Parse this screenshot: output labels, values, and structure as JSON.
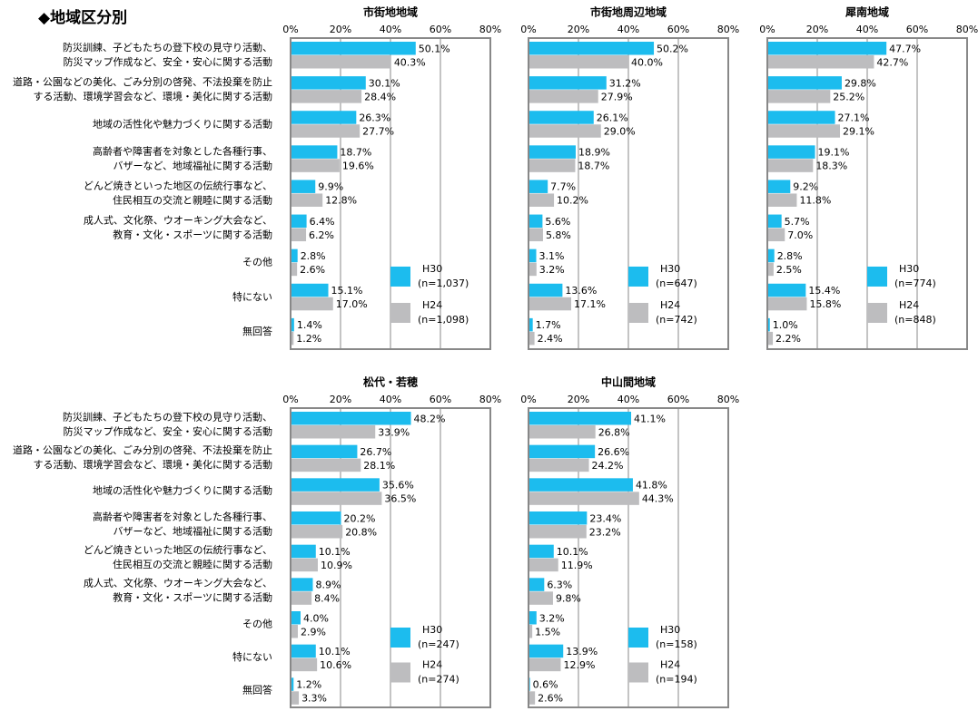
{
  "title": "◆地域区分別",
  "categories": [
    [
      "防災訓練、子どもたちの登下校の見守り活動、",
      "防災マップ作成など、安全・安心に関する活動"
    ],
    [
      "道路・公園などの美化、ごみ分別の啓発、不法投棄を防止",
      "する活動、環境学習会など、環境・美化に関する活動"
    ],
    [
      "地域の活性化や魅力づくりに関する活動"
    ],
    [
      "高齢者や障害者を対象とした各種行事、",
      "バザーなど、地域福祉に関する活動"
    ],
    [
      "どんど焼きといった地区の伝統行事など、",
      "住民相互の交流と親睦に関する活動"
    ],
    [
      "成人式、文化祭、ウオーキング大会など、",
      "教育・文化・スポーツに関する活動"
    ],
    [
      "その他"
    ],
    [
      "特にない"
    ],
    [
      "無回答"
    ]
  ],
  "chart_data": [
    {
      "type": "hbar",
      "title": "市街地地域",
      "xlim": [
        0,
        80
      ],
      "xticks": [
        {
          "value": 0,
          "label": "0%"
        },
        {
          "value": 20,
          "label": "20%"
        },
        {
          "value": 40,
          "label": "40%"
        },
        {
          "value": 60,
          "label": "60%"
        },
        {
          "value": 80,
          "label": "80%"
        }
      ],
      "grid": true,
      "series": [
        {
          "name": "H30",
          "n_label": "(n=1,037)",
          "color": "#1cbcee",
          "values": [
            50.1,
            30.1,
            26.3,
            18.7,
            9.9,
            6.4,
            2.8,
            15.1,
            1.4
          ],
          "value_labels": [
            "50.1%",
            "30.1%",
            "26.3%",
            "18.7%",
            "9.9%",
            "6.4%",
            "2.8%",
            "15.1%",
            "1.4%"
          ]
        },
        {
          "name": "H24",
          "n_label": "(n=1,098)",
          "color": "#bdbdbf",
          "values": [
            40.3,
            28.4,
            27.7,
            19.6,
            12.8,
            6.2,
            2.6,
            17.0,
            1.2
          ],
          "value_labels": [
            "40.3%",
            "28.4%",
            "27.7%",
            "19.6%",
            "12.8%",
            "6.2%",
            "2.6%",
            "17.0%",
            "1.2%"
          ]
        }
      ]
    },
    {
      "type": "hbar",
      "title": "市街地周辺地域",
      "xlim": [
        0,
        80
      ],
      "xticks": [
        {
          "value": 0,
          "label": "0%"
        },
        {
          "value": 20,
          "label": "20%"
        },
        {
          "value": 40,
          "label": "40%"
        },
        {
          "value": 60,
          "label": "60%"
        },
        {
          "value": 80,
          "label": "80%"
        }
      ],
      "grid": true,
      "series": [
        {
          "name": "H30",
          "n_label": "(n=647)",
          "color": "#1cbcee",
          "values": [
            50.2,
            31.2,
            26.1,
            18.9,
            7.7,
            5.6,
            3.1,
            13.6,
            1.7
          ],
          "value_labels": [
            "50.2%",
            "31.2%",
            "26.1%",
            "18.9%",
            "7.7%",
            "5.6%",
            "3.1%",
            "13.6%",
            "1.7%"
          ]
        },
        {
          "name": "H24",
          "n_label": "(n=742)",
          "color": "#bdbdbf",
          "values": [
            40.0,
            27.9,
            29.0,
            18.7,
            10.2,
            5.8,
            3.2,
            17.1,
            2.4
          ],
          "value_labels": [
            "40.0%",
            "27.9%",
            "29.0%",
            "18.7%",
            "10.2%",
            "5.8%",
            "3.2%",
            "17.1%",
            "2.4%"
          ]
        }
      ]
    },
    {
      "type": "hbar",
      "title": "犀南地域",
      "xlim": [
        0,
        80
      ],
      "xticks": [
        {
          "value": 0,
          "label": "0%"
        },
        {
          "value": 20,
          "label": "20%"
        },
        {
          "value": 40,
          "label": "40%"
        },
        {
          "value": 60,
          "label": "60%"
        },
        {
          "value": 80,
          "label": "80%"
        }
      ],
      "grid": true,
      "series": [
        {
          "name": "H30",
          "n_label": "(n=774)",
          "color": "#1cbcee",
          "values": [
            47.7,
            29.8,
            27.1,
            19.1,
            9.2,
            5.7,
            2.8,
            15.4,
            1.0
          ],
          "value_labels": [
            "47.7%",
            "29.8%",
            "27.1%",
            "19.1%",
            "9.2%",
            "5.7%",
            "2.8%",
            "15.4%",
            "1.0%"
          ]
        },
        {
          "name": "H24",
          "n_label": "(n=848)",
          "color": "#bdbdbf",
          "values": [
            42.7,
            25.2,
            29.1,
            18.3,
            11.8,
            7.0,
            2.5,
            15.8,
            2.2
          ],
          "value_labels": [
            "42.7%",
            "25.2%",
            "29.1%",
            "18.3%",
            "11.8%",
            "7.0%",
            "2.5%",
            "15.8%",
            "2.2%"
          ]
        }
      ]
    },
    {
      "type": "hbar",
      "title": "松代・若穂",
      "xlim": [
        0,
        80
      ],
      "xticks": [
        {
          "value": 0,
          "label": "0%"
        },
        {
          "value": 20,
          "label": "20%"
        },
        {
          "value": 40,
          "label": "40%"
        },
        {
          "value": 60,
          "label": "60%"
        },
        {
          "value": 80,
          "label": "80%"
        }
      ],
      "grid": true,
      "series": [
        {
          "name": "H30",
          "n_label": "(n=247)",
          "color": "#1cbcee",
          "values": [
            48.2,
            26.7,
            35.6,
            20.2,
            10.1,
            8.9,
            4.0,
            10.1,
            1.2
          ],
          "value_labels": [
            "48.2%",
            "26.7%",
            "35.6%",
            "20.2%",
            "10.1%",
            "8.9%",
            "4.0%",
            "10.1%",
            "1.2%"
          ]
        },
        {
          "name": "H24",
          "n_label": "(n=274)",
          "color": "#bdbdbf",
          "values": [
            33.9,
            28.1,
            36.5,
            20.8,
            10.9,
            8.4,
            2.9,
            10.6,
            3.3
          ],
          "value_labels": [
            "33.9%",
            "28.1%",
            "36.5%",
            "20.8%",
            "10.9%",
            "8.4%",
            "2.9%",
            "10.6%",
            "3.3%"
          ]
        }
      ]
    },
    {
      "type": "hbar",
      "title": "中山間地域",
      "xlim": [
        0,
        80
      ],
      "xticks": [
        {
          "value": 0,
          "label": "0%"
        },
        {
          "value": 20,
          "label": "20%"
        },
        {
          "value": 40,
          "label": "40%"
        },
        {
          "value": 60,
          "label": "60%"
        },
        {
          "value": 80,
          "label": "80%"
        }
      ],
      "grid": true,
      "series": [
        {
          "name": "H30",
          "n_label": "(n=158)",
          "color": "#1cbcee",
          "values": [
            41.1,
            26.6,
            41.8,
            23.4,
            10.1,
            6.3,
            3.2,
            13.9,
            0.6
          ],
          "value_labels": [
            "41.1%",
            "26.6%",
            "41.8%",
            "23.4%",
            "10.1%",
            "6.3%",
            "3.2%",
            "13.9%",
            "0.6%"
          ]
        },
        {
          "name": "H24",
          "n_label": "(n=194)",
          "color": "#bdbdbf",
          "values": [
            26.8,
            24.2,
            44.3,
            23.2,
            11.9,
            9.8,
            1.5,
            12.9,
            2.6
          ],
          "value_labels": [
            "26.8%",
            "24.2%",
            "44.3%",
            "23.2%",
            "11.9%",
            "9.8%",
            "1.5%",
            "12.9%",
            "2.6%"
          ]
        }
      ]
    }
  ]
}
